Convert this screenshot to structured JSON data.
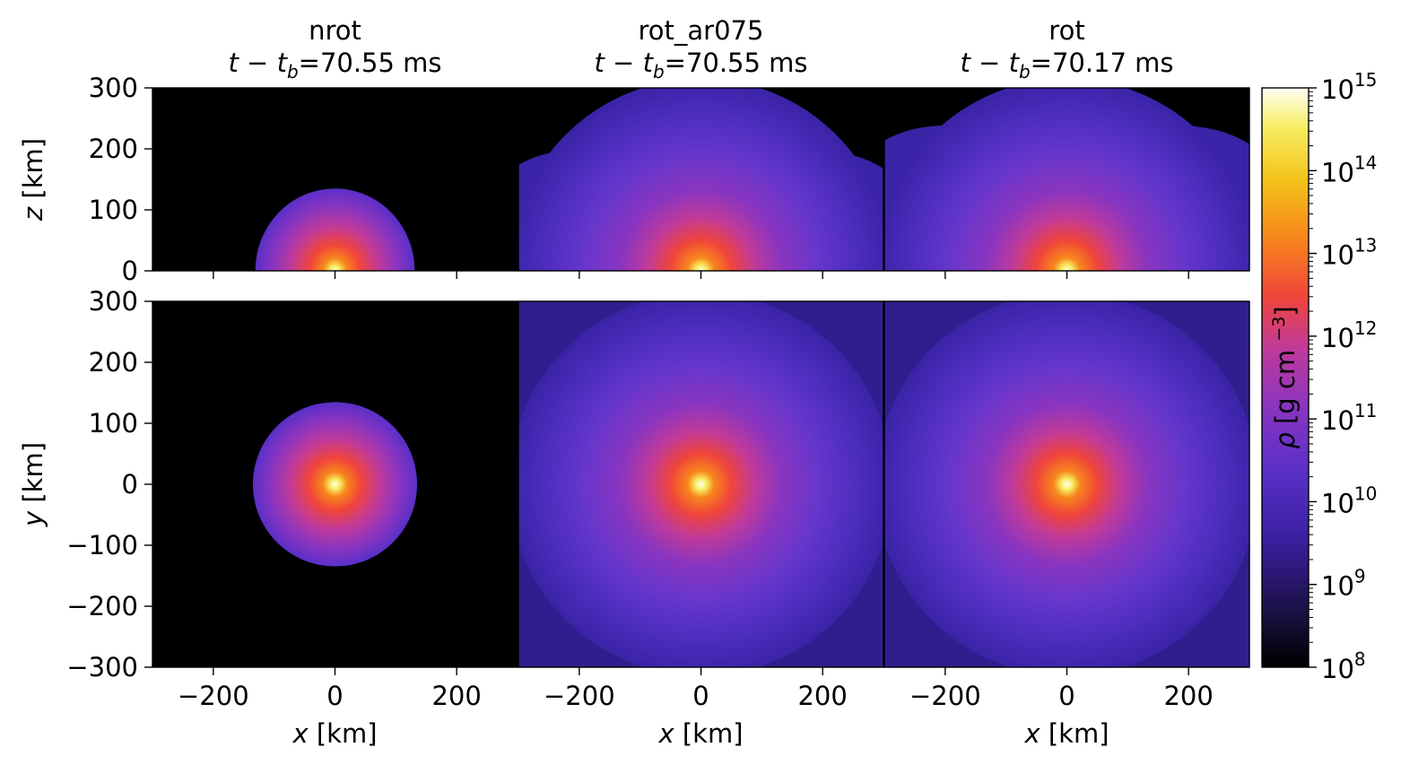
{
  "chart_data": {
    "type": "heatmap",
    "panels": [
      {
        "name": "nrot",
        "time_label": "70.55",
        "time_unit": "ms",
        "outer_radius_km": 135,
        "rz_extent": {
          "left_km": -130,
          "right_km": 130,
          "top_km": 135
        }
      },
      {
        "name": "rot_ar075",
        "time_label": "70.55",
        "time_unit": "ms",
        "outer_radius_km": 300,
        "rz_extent": {
          "left_km": -300,
          "right_km": 300,
          "top_km": 200
        }
      },
      {
        "name": "rot",
        "time_label": "70.17",
        "time_unit": "ms",
        "outer_radius_km": 300,
        "rz_extent": {
          "left_km": -300,
          "right_km": 300,
          "top_km": 240
        }
      }
    ],
    "rows": [
      {
        "id": "xz",
        "ylabel_var": "z",
        "ylabel_unit": "[km]",
        "ylim": [
          0,
          300
        ],
        "yticks": [
          0,
          100,
          200,
          300
        ]
      },
      {
        "id": "xy",
        "ylabel_var": "y",
        "ylabel_unit": "[km]",
        "ylim": [
          -300,
          300
        ],
        "yticks": [
          -300,
          -200,
          -100,
          0,
          100,
          200,
          300
        ]
      }
    ],
    "xlabel_var": "x",
    "xlabel_unit": "[km]",
    "xlim": [
      -300,
      300
    ],
    "xticks": [
      -200,
      0,
      200
    ],
    "time_prefix": "t − t",
    "time_subscript": "b",
    "colorbar": {
      "label_var": "ρ",
      "label_unit": "[g cm",
      "label_exp": "−3",
      "label_close": "]",
      "scale": "log",
      "range": [
        8,
        15
      ],
      "tick_base": "10",
      "tick_exponents": [
        "8",
        "9",
        "10",
        "11",
        "12",
        "13",
        "14",
        "15"
      ],
      "colormap": [
        "#000000",
        "#1c1147",
        "#3a1fa0",
        "#5a2fc8",
        "#8a35c0",
        "#c03a9a",
        "#f0453a",
        "#f7861c",
        "#f4c21a",
        "#f7ec60",
        "#fffff4"
      ]
    }
  }
}
